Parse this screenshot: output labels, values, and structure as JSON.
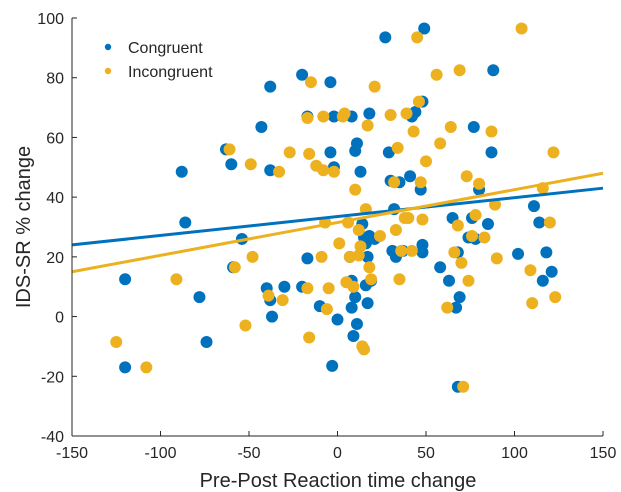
{
  "chart_data": {
    "type": "scatter",
    "xlabel": "Pre-Post Reaction time change",
    "ylabel": "IDS-SR % change",
    "xlim": [
      -150,
      150
    ],
    "ylim": [
      -40,
      100
    ],
    "xticks": [
      -150,
      -100,
      -50,
      0,
      50,
      100,
      150
    ],
    "yticks": [
      -40,
      -20,
      0,
      20,
      40,
      60,
      80,
      100
    ],
    "grid": false,
    "legend_position": "top-left",
    "series": [
      {
        "name": "Congruent",
        "color": "#0072BD",
        "fit": [
          [
            -150,
            24
          ],
          [
            150,
            43
          ]
        ],
        "points": [
          [
            -120,
            12.5
          ],
          [
            -120,
            -17
          ],
          [
            -88,
            48.5
          ],
          [
            -86,
            31.5
          ],
          [
            -78,
            6.5
          ],
          [
            -74,
            -8.5
          ],
          [
            -63,
            56
          ],
          [
            -60,
            51
          ],
          [
            -59,
            16.5
          ],
          [
            -54,
            26
          ],
          [
            -43,
            63.5
          ],
          [
            -40,
            9.5
          ],
          [
            -38,
            77
          ],
          [
            -38,
            49
          ],
          [
            -37,
            0
          ],
          [
            -38,
            5.5
          ],
          [
            -30,
            10
          ],
          [
            -20,
            10
          ],
          [
            -20,
            81
          ],
          [
            -17,
            67
          ],
          [
            -17,
            19.5
          ],
          [
            -10,
            3.5
          ],
          [
            -4,
            55
          ],
          [
            -4,
            78.5
          ],
          [
            -2,
            67
          ],
          [
            -2,
            50
          ],
          [
            -3,
            -16.5
          ],
          [
            0,
            -1
          ],
          [
            8,
            67
          ],
          [
            8,
            3
          ],
          [
            7,
            20
          ],
          [
            8,
            12
          ],
          [
            9,
            -6.5
          ],
          [
            10,
            55.5
          ],
          [
            11,
            58
          ],
          [
            10,
            6.5
          ],
          [
            11,
            -2.5
          ],
          [
            13,
            48.5
          ],
          [
            14,
            31
          ],
          [
            15,
            26.5
          ],
          [
            16,
            24.5
          ],
          [
            16,
            10.5
          ],
          [
            17,
            4.5
          ],
          [
            17,
            20
          ],
          [
            18,
            68
          ],
          [
            18,
            27
          ],
          [
            19,
            12
          ],
          [
            21,
            26
          ],
          [
            27,
            93.5
          ],
          [
            29,
            55
          ],
          [
            30,
            45.5
          ],
          [
            31,
            22
          ],
          [
            32,
            36
          ],
          [
            33,
            20
          ],
          [
            35,
            45
          ],
          [
            37,
            22
          ],
          [
            41,
            47
          ],
          [
            42,
            67
          ],
          [
            44,
            68.5
          ],
          [
            47,
            42.5
          ],
          [
            48,
            72
          ],
          [
            48,
            21.5
          ],
          [
            48,
            24
          ],
          [
            49,
            96.5
          ],
          [
            58,
            16.5
          ],
          [
            63,
            12
          ],
          [
            65,
            33
          ],
          [
            67,
            3
          ],
          [
            68,
            21.5
          ],
          [
            69,
            6.5
          ],
          [
            68,
            -23.5
          ],
          [
            74,
            26.5
          ],
          [
            76,
            33
          ],
          [
            77,
            63.5
          ],
          [
            78,
            26
          ],
          [
            80,
            42.5
          ],
          [
            85,
            31
          ],
          [
            87,
            55
          ],
          [
            88,
            82.5
          ],
          [
            102,
            21
          ],
          [
            111,
            37
          ],
          [
            114,
            31.5
          ],
          [
            116,
            12
          ],
          [
            118,
            21.5
          ],
          [
            121,
            15
          ]
        ]
      },
      {
        "name": "Incongruent",
        "color": "#EDB120",
        "fit": [
          [
            -150,
            15
          ],
          [
            150,
            48
          ]
        ],
        "points": [
          [
            -125,
            -8.5
          ],
          [
            -108,
            -17
          ],
          [
            -91,
            12.5
          ],
          [
            -61,
            56
          ],
          [
            -58,
            16.5
          ],
          [
            -52,
            -3
          ],
          [
            -49,
            51
          ],
          [
            -48,
            20
          ],
          [
            -39,
            7
          ],
          [
            -33,
            48.5
          ],
          [
            -31,
            5.5
          ],
          [
            -27,
            55
          ],
          [
            -17,
            66.5
          ],
          [
            -17,
            9.5
          ],
          [
            -16,
            -7
          ],
          [
            -16,
            54.5
          ],
          [
            -15,
            78.5
          ],
          [
            -12,
            50.5
          ],
          [
            -8,
            67
          ],
          [
            -9,
            20
          ],
          [
            -8,
            49
          ],
          [
            -7,
            31.5
          ],
          [
            -6,
            2.5
          ],
          [
            -5,
            9.5
          ],
          [
            -2,
            48.5
          ],
          [
            1,
            24.5
          ],
          [
            3,
            67
          ],
          [
            4,
            68
          ],
          [
            5,
            11.5
          ],
          [
            6,
            31.5
          ],
          [
            7,
            20
          ],
          [
            9,
            10
          ],
          [
            10,
            42.5
          ],
          [
            12,
            20.5
          ],
          [
            12,
            29
          ],
          [
            13,
            23.5
          ],
          [
            14,
            -10
          ],
          [
            15,
            -11
          ],
          [
            16,
            36
          ],
          [
            17,
            64
          ],
          [
            18,
            16.5
          ],
          [
            19,
            12.5
          ],
          [
            21,
            77
          ],
          [
            24,
            27
          ],
          [
            30,
            67.5
          ],
          [
            32,
            45
          ],
          [
            33,
            29
          ],
          [
            34,
            56.5
          ],
          [
            35,
            12.5
          ],
          [
            36,
            22
          ],
          [
            38,
            33
          ],
          [
            39,
            68
          ],
          [
            40,
            33
          ],
          [
            42,
            22
          ],
          [
            43,
            62
          ],
          [
            45,
            93.5
          ],
          [
            46,
            72
          ],
          [
            47,
            45
          ],
          [
            48,
            32.5
          ],
          [
            50,
            52
          ],
          [
            56,
            81
          ],
          [
            58,
            58
          ],
          [
            62,
            3
          ],
          [
            64,
            63.5
          ],
          [
            66,
            21.5
          ],
          [
            68,
            30.5
          ],
          [
            69,
            82.5
          ],
          [
            70,
            18
          ],
          [
            71,
            -23.5
          ],
          [
            73,
            47
          ],
          [
            74,
            12
          ],
          [
            76,
            27
          ],
          [
            78,
            34
          ],
          [
            80,
            44.5
          ],
          [
            83,
            26.5
          ],
          [
            87,
            62
          ],
          [
            89,
            37.5
          ],
          [
            90,
            19.5
          ],
          [
            104,
            96.5
          ],
          [
            109,
            15.5
          ],
          [
            110,
            4.5
          ],
          [
            116,
            43
          ],
          [
            120,
            31.5
          ],
          [
            122,
            55
          ],
          [
            123,
            6.5
          ]
        ]
      }
    ]
  }
}
